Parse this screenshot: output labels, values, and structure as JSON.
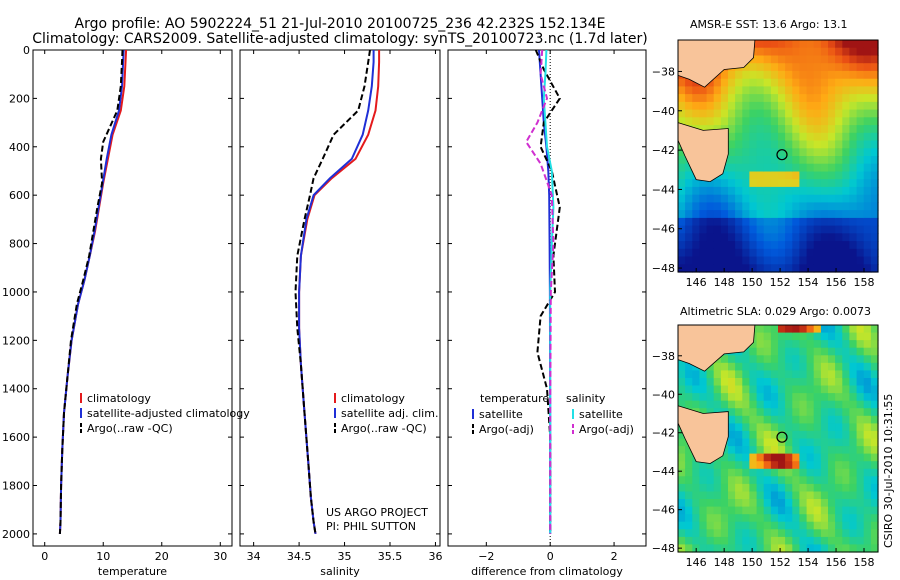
{
  "header": {
    "line1": "Argo profile: AO 5902224_51 21-Jul-2010 20100725_236 42.232S 152.134E",
    "line2": "Climatology: CARS2009. Satellite-adjusted climatology: synTS_20100723.nc (1.7d later)"
  },
  "side_note": "CSIRO 30-Jul-2010 10:31:55",
  "colors": {
    "climatology": "#e41a1c",
    "satellite": "#1f2fd6",
    "argo": "#000000",
    "temp_satellite_diff": "#1f2fd6",
    "sal_satellite_diff": "#22e0e6",
    "sal_argo_diff": "#d02fd0",
    "land": "#f8c49a"
  },
  "chart_data": [
    {
      "type": "line",
      "panel": "temperature",
      "xlabel": "temperature",
      "ylabel": "",
      "xlim": [
        -2,
        32
      ],
      "ylim": [
        2050,
        0
      ],
      "xticks": [
        0,
        10,
        20,
        30
      ],
      "yticks": [
        0,
        200,
        400,
        600,
        800,
        1000,
        1200,
        1400,
        1600,
        1800,
        2000
      ],
      "legend": [
        "climatology",
        "satellite-adjusted climatology",
        "Argo(..raw -QC)"
      ],
      "series": [
        {
          "name": "climatology",
          "x": [
            13.9,
            13.8,
            13.6,
            13.0,
            11.6,
            10.8,
            10.0,
            9.3,
            8.6,
            7.7,
            6.8,
            5.7,
            4.6,
            3.9,
            3.3,
            3.0,
            2.8,
            2.7,
            2.6
          ],
          "y": [
            0,
            50,
            150,
            250,
            350,
            450,
            550,
            650,
            750,
            850,
            950,
            1050,
            1200,
            1350,
            1500,
            1650,
            1800,
            1950,
            2000
          ]
        },
        {
          "name": "satellite-adjusted climatology",
          "x": [
            13.5,
            13.4,
            13.2,
            12.7,
            11.4,
            10.6,
            9.9,
            9.2,
            8.5,
            7.7,
            6.8,
            5.7,
            4.6,
            3.9,
            3.3,
            3.0,
            2.8,
            2.7,
            2.6
          ],
          "y": [
            0,
            50,
            150,
            250,
            350,
            450,
            550,
            650,
            750,
            850,
            950,
            1050,
            1200,
            1350,
            1500,
            1650,
            1800,
            1950,
            2000
          ]
        },
        {
          "name": "Argo(..raw -QC)",
          "x": [
            13.3,
            13.2,
            13.0,
            12.4,
            10.0,
            9.6,
            9.8,
            9.0,
            8.3,
            7.6,
            6.6,
            5.5,
            4.5,
            3.9,
            3.3,
            3.0,
            2.8,
            2.7,
            2.6
          ],
          "y": [
            0,
            50,
            150,
            250,
            380,
            450,
            550,
            650,
            750,
            850,
            950,
            1050,
            1200,
            1350,
            1500,
            1650,
            1800,
            1950,
            2000
          ]
        }
      ]
    },
    {
      "type": "line",
      "panel": "salinity",
      "xlabel": "salinity",
      "ylabel": "",
      "xlim": [
        33.85,
        36.05
      ],
      "ylim": [
        2050,
        0
      ],
      "xticks": [
        34,
        34.5,
        35,
        35.5,
        36
      ],
      "legend": [
        "climatology",
        "satellite adj. clim.",
        "Argo(..raw -QC)"
      ],
      "tick_labels": [
        "34",
        "34.5",
        "35",
        "35.5",
        "36"
      ],
      "annotation": [
        "US ARGO PROJECT",
        "PI: PHIL SUTTON"
      ],
      "series": [
        {
          "name": "climatology",
          "x": [
            35.38,
            35.38,
            35.37,
            35.34,
            35.26,
            35.12,
            34.86,
            34.67,
            34.59,
            34.52,
            34.5,
            34.5,
            34.52,
            34.56,
            34.6,
            34.63,
            34.66,
            34.68
          ],
          "y": [
            0,
            50,
            150,
            250,
            350,
            450,
            530,
            600,
            700,
            850,
            1000,
            1150,
            1300,
            1500,
            1700,
            1850,
            1950,
            2000
          ]
        },
        {
          "name": "satellite adj. clim.",
          "x": [
            35.32,
            35.32,
            35.3,
            35.26,
            35.2,
            35.08,
            34.84,
            34.66,
            34.58,
            34.52,
            34.5,
            34.5,
            34.52,
            34.56,
            34.6,
            34.63,
            34.66,
            34.68
          ],
          "y": [
            0,
            50,
            150,
            250,
            350,
            450,
            530,
            600,
            700,
            850,
            1000,
            1150,
            1300,
            1500,
            1700,
            1850,
            1950,
            2000
          ]
        },
        {
          "name": "Argo(..raw -QC)",
          "x": [
            35.28,
            35.26,
            35.22,
            35.15,
            34.88,
            34.76,
            34.66,
            34.62,
            34.56,
            34.48,
            34.46,
            34.48,
            34.52,
            34.56,
            34.6,
            34.63,
            34.66,
            34.68
          ],
          "y": [
            0,
            50,
            150,
            250,
            350,
            450,
            530,
            600,
            700,
            850,
            1000,
            1150,
            1300,
            1500,
            1700,
            1850,
            1950,
            2000
          ]
        }
      ]
    },
    {
      "type": "line",
      "panel": "difference",
      "xlabel": "difference from climatology",
      "ylabel": "",
      "xlim": [
        -3.2,
        3.0
      ],
      "ylim": [
        2050,
        0
      ],
      "xticks": [
        -2,
        0,
        2
      ],
      "tick_labels": [
        "−2",
        "0",
        "2"
      ],
      "legend_headers": [
        "temperature",
        "salinity"
      ],
      "legend": [
        [
          "satellite",
          "Argo(-adj)"
        ],
        [
          "satellite",
          "Argo(-adj)"
        ]
      ],
      "series": [
        {
          "name": "satellite",
          "group": "temperature",
          "x": [
            -0.35,
            -0.3,
            -0.25,
            -0.2,
            -0.12,
            -0.06,
            -0.03,
            -0.02,
            -0.01,
            0,
            0
          ],
          "y": [
            0,
            100,
            200,
            300,
            400,
            500,
            600,
            800,
            1000,
            1500,
            2000
          ]
        },
        {
          "name": "Argo(-adj)",
          "group": "temperature",
          "x": [
            -0.45,
            -0.2,
            0.3,
            -0.2,
            -0.3,
            0.05,
            0.3,
            0.1,
            0.15,
            -0.3,
            -0.4,
            -0.1,
            0,
            0
          ],
          "y": [
            0,
            80,
            200,
            300,
            400,
            500,
            650,
            850,
            1000,
            1100,
            1250,
            1400,
            1600,
            2000
          ]
        },
        {
          "name": "satellite",
          "group": "salinity",
          "x": [
            -0.12,
            -0.15,
            -0.2,
            -0.15,
            -0.1,
            0.05,
            0.1,
            0.05,
            0,
            0,
            0
          ],
          "y": [
            0,
            100,
            200,
            300,
            400,
            500,
            650,
            800,
            1000,
            1500,
            2000
          ]
        },
        {
          "name": "Argo(-adj)",
          "group": "salinity",
          "x": [
            -0.25,
            -0.3,
            -0.1,
            -0.4,
            -0.75,
            -0.3,
            0.05,
            0.1,
            0.02,
            0,
            0
          ],
          "y": [
            0,
            100,
            200,
            300,
            380,
            470,
            600,
            800,
            1000,
            1500,
            2000
          ]
        }
      ]
    },
    {
      "type": "heatmap",
      "panel": "sst_map",
      "title": "AMSR-E SST: 13.6 Argo: 13.1",
      "xticks": [
        146,
        148,
        150,
        152,
        154,
        156,
        158
      ],
      "yticks": [
        -38,
        -40,
        -42,
        -44,
        -46,
        -48
      ],
      "xlim": [
        144.7,
        159
      ],
      "ylim": [
        -48.2,
        -36.4
      ],
      "argo_location": [
        152.134,
        -42.232
      ]
    },
    {
      "type": "heatmap",
      "panel": "sla_map",
      "title": "Altimetric SLA: 0.029 Argo: 0.0073",
      "xticks": [
        146,
        148,
        150,
        152,
        154,
        156,
        158
      ],
      "yticks": [
        -38,
        -40,
        -42,
        -44,
        -46,
        -48
      ],
      "xlim": [
        144.7,
        159
      ],
      "ylim": [
        -48.2,
        -36.4
      ],
      "argo_location": [
        152.134,
        -42.232
      ]
    }
  ]
}
